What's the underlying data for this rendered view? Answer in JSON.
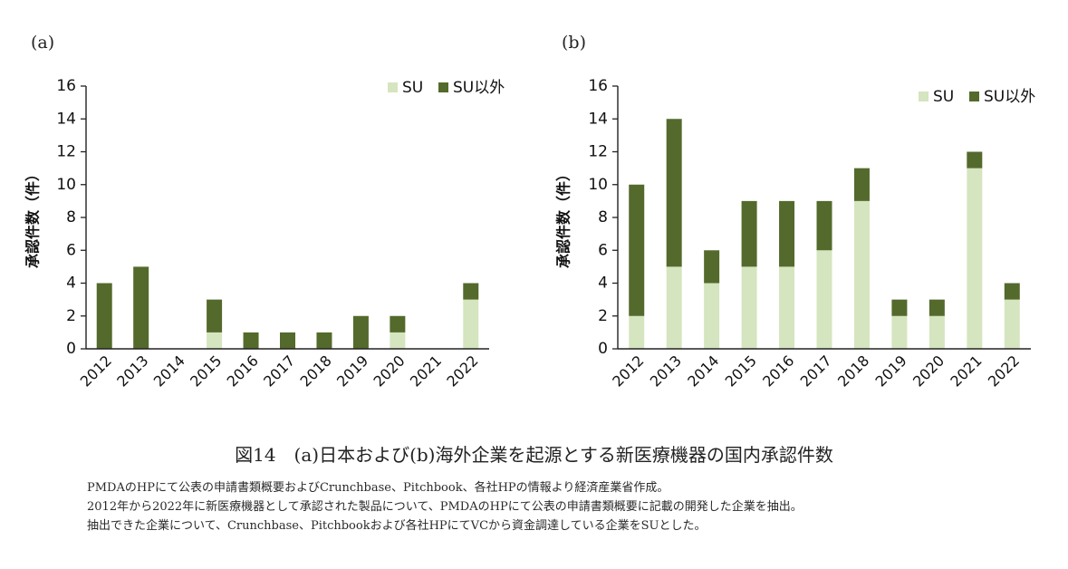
{
  "colors": {
    "su": "#d5e5bf",
    "non_su": "#536a2c",
    "axis": "#222222"
  },
  "chart_data": [
    {
      "type": "bar",
      "stacked": true,
      "panel": "(a)",
      "title": "(a)",
      "categories": [
        "2012",
        "2013",
        "2014",
        "2015",
        "2016",
        "2017",
        "2018",
        "2019",
        "2020",
        "2021",
        "2022"
      ],
      "series": [
        {
          "name": "SU",
          "values": [
            0,
            0,
            0,
            1,
            0,
            0,
            0,
            0,
            1,
            0,
            3
          ]
        },
        {
          "name": "SU以外",
          "values": [
            4,
            5,
            0,
            2,
            1,
            1,
            1,
            2,
            1,
            0,
            1
          ]
        }
      ],
      "xlabel": "",
      "ylabel": "承認件数（件）",
      "ylim": [
        0,
        16
      ],
      "yticks": [
        0,
        2,
        4,
        6,
        8,
        10,
        12,
        14,
        16
      ],
      "legend": "top-right",
      "grid": false
    },
    {
      "type": "bar",
      "stacked": true,
      "panel": "(b)",
      "title": "(b)",
      "categories": [
        "2012",
        "2013",
        "2014",
        "2015",
        "2016",
        "2017",
        "2018",
        "2019",
        "2020",
        "2021",
        "2022"
      ],
      "series": [
        {
          "name": "SU",
          "values": [
            2,
            5,
            4,
            5,
            5,
            6,
            9,
            2,
            2,
            11,
            3
          ]
        },
        {
          "name": "SU以外",
          "values": [
            8,
            9,
            2,
            4,
            4,
            3,
            2,
            1,
            1,
            1,
            1
          ]
        }
      ],
      "xlabel": "",
      "ylabel": "承認件数（件）",
      "ylim": [
        0,
        16
      ],
      "yticks": [
        0,
        2,
        4,
        6,
        8,
        10,
        12,
        14,
        16
      ],
      "legend": "top-right",
      "grid": false
    }
  ],
  "caption": {
    "title": "図14　(a)日本および(b)海外企業を起源とする新医療機器の国内承認件数",
    "notes": [
      "PMDAのHPにて公表の申請書類概要およびCrunchbase、Pitchbook、各社HPの情報より経済産業省作成。",
      "2012年から2022年に新医療機器として承認された製品について、PMDAのHPにて公表の申請書類概要に記載の開発した企業を抽出。",
      "抽出できた企業について、Crunchbase、Pitchbookおよび各社HPにてVCから資金調達している企業をSUとした。"
    ]
  }
}
